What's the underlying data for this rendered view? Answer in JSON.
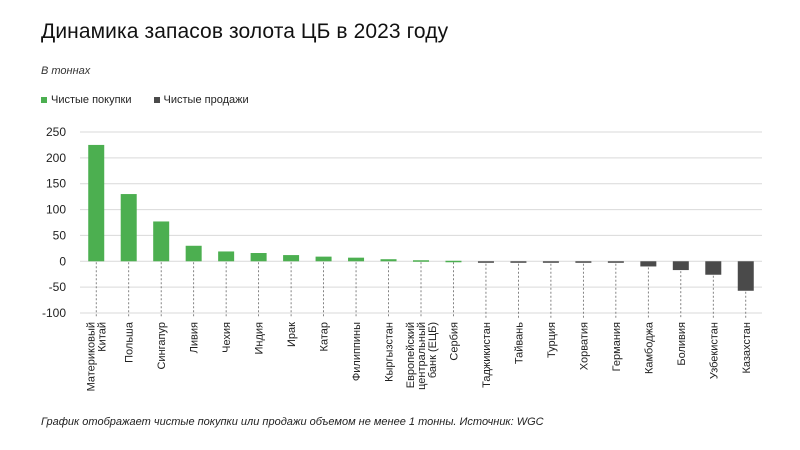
{
  "title": "Динамика запасов золота ЦБ в 2023 году",
  "subtitle": "В тоннах",
  "legend": {
    "purchases": "Чистые покупки",
    "sales": "Чистые продажи"
  },
  "colors": {
    "purchases": "#4caf50",
    "sales": "#4a4a4a",
    "gridline": "#d9d9d9",
    "leader": "#666666"
  },
  "footnote": "График отображает чистые покупки или продажи объемом не менее 1 тонны. Источник: WGC",
  "chart_data": {
    "type": "bar",
    "ylim": [
      -100,
      250
    ],
    "yticks": [
      250,
      200,
      150,
      100,
      50,
      0,
      -50,
      -100
    ],
    "ytick_labels": [
      "250",
      "200",
      "150",
      "100",
      "50",
      "0",
      "-50",
      "-100"
    ],
    "grid": true,
    "legend_position": "top-left",
    "categories": [
      [
        "Материковый",
        "Китай"
      ],
      [
        "Польша"
      ],
      [
        "Сингапур"
      ],
      [
        "Ливия"
      ],
      [
        "Чехия"
      ],
      [
        "Индия"
      ],
      [
        "Ирак"
      ],
      [
        "Катар"
      ],
      [
        "Филиппины"
      ],
      [
        "Кыргызстан"
      ],
      [
        "Европейский",
        "центральный",
        "банк (ЕЦБ)"
      ],
      [
        "Сербия"
      ],
      [
        "Таджикистан"
      ],
      [
        "Тайвань"
      ],
      [
        "Турция"
      ],
      [
        "Хорватия"
      ],
      [
        "Германия"
      ],
      [
        "Камбоджа"
      ],
      [
        "Боливия"
      ],
      [
        "Узбекистан"
      ],
      [
        "Казахстан"
      ]
    ],
    "values": [
      225,
      130,
      77,
      30,
      19,
      16,
      12,
      9,
      7,
      4,
      2,
      1,
      -1,
      -1,
      -1,
      -1,
      -2,
      -10,
      -17,
      -26,
      -57
    ]
  }
}
